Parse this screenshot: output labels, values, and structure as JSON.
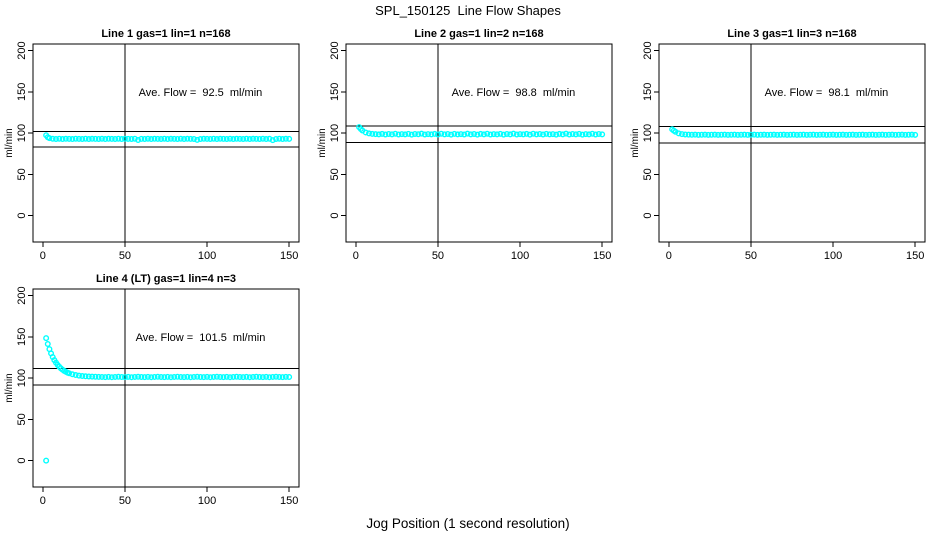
{
  "page": {
    "main_title": "SPL_150125  Line Flow Shapes",
    "x_axis_label": "Jog Position (1 second resolution)",
    "background_color": "#FFFFFF",
    "point_color": "#00FFFF",
    "axis_color": "#000000"
  },
  "chart_data": [
    {
      "type": "scatter",
      "title": "Line 1 gas=1 lin=1 n=168",
      "annotation": "Ave. Flow =  92.5  ml/min",
      "ave_flow_ml_min": 92.5,
      "n": 168,
      "ylabel": "ml/min",
      "x_ticks": [
        0,
        50,
        100,
        150
      ],
      "y_ticks": [
        0,
        50,
        100,
        150,
        200
      ],
      "xlim": [
        -6,
        156
      ],
      "ylim": [
        -32,
        208
      ],
      "ref_lines_y": [
        101.8,
        83.3
      ],
      "ref_line_x": 50,
      "annotation_pos": {
        "x": 96,
        "y": 150
      },
      "grid": false,
      "x": [
        2,
        3,
        4,
        6,
        8,
        10,
        12,
        14,
        16,
        18,
        20,
        22,
        24,
        26,
        28,
        30,
        32,
        34,
        36,
        38,
        40,
        42,
        44,
        46,
        48,
        50,
        52,
        54,
        56,
        58,
        60,
        62,
        64,
        66,
        68,
        70,
        72,
        74,
        76,
        78,
        80,
        82,
        84,
        86,
        88,
        90,
        92,
        94,
        96,
        98,
        100,
        102,
        104,
        106,
        108,
        110,
        112,
        114,
        116,
        118,
        120,
        122,
        124,
        126,
        128,
        130,
        132,
        134,
        136,
        138,
        140,
        142,
        144,
        146,
        148,
        150
      ],
      "y": [
        97.4,
        95.0,
        93.9,
        93.2,
        92.9,
        93.2,
        92.8,
        93.1,
        93.0,
        92.8,
        93.2,
        93.0,
        92.9,
        93.2,
        92.8,
        93.1,
        93.0,
        92.9,
        93.2,
        92.8,
        93.1,
        93.0,
        92.9,
        93.2,
        92.8,
        93.1,
        93.0,
        92.9,
        93.2,
        91.6,
        93.0,
        92.9,
        93.2,
        92.8,
        93.1,
        93.0,
        92.9,
        93.2,
        92.8,
        93.1,
        93.0,
        92.9,
        93.2,
        92.8,
        93.1,
        93.0,
        92.9,
        91.8,
        92.8,
        93.1,
        93.0,
        92.9,
        93.2,
        92.8,
        93.1,
        93.0,
        92.9,
        93.2,
        92.8,
        93.1,
        93.0,
        92.9,
        93.2,
        92.8,
        93.1,
        93.0,
        92.9,
        93.2,
        92.8,
        93.1,
        91.5,
        92.9,
        93.2,
        92.8,
        93.1,
        93.0
      ]
    },
    {
      "type": "scatter",
      "title": "Line 2 gas=1 lin=2 n=168",
      "annotation": "Ave. Flow =  98.8  ml/min",
      "ave_flow_ml_min": 98.8,
      "n": 168,
      "ylabel": "ml/min",
      "x_ticks": [
        0,
        50,
        100,
        150
      ],
      "y_ticks": [
        0,
        50,
        100,
        150,
        200
      ],
      "xlim": [
        -6,
        156
      ],
      "ylim": [
        -32,
        208
      ],
      "ref_lines_y": [
        108.7,
        88.9
      ],
      "ref_line_x": 50,
      "annotation_pos": {
        "x": 96,
        "y": 150
      },
      "grid": false,
      "x": [
        2,
        3,
        4,
        6,
        8,
        10,
        12,
        14,
        16,
        18,
        20,
        22,
        24,
        26,
        28,
        30,
        32,
        34,
        36,
        38,
        40,
        42,
        44,
        46,
        48,
        50,
        52,
        54,
        56,
        58,
        60,
        62,
        64,
        66,
        68,
        70,
        72,
        74,
        76,
        78,
        80,
        82,
        84,
        86,
        88,
        90,
        92,
        94,
        96,
        98,
        100,
        102,
        104,
        106,
        108,
        110,
        112,
        114,
        116,
        118,
        120,
        122,
        124,
        126,
        128,
        130,
        132,
        134,
        136,
        138,
        140,
        142,
        144,
        146,
        148,
        150
      ],
      "y": [
        107.2,
        105.0,
        103.1,
        100.8,
        99.6,
        99.0,
        98.7,
        98.4,
        99.0,
        98.3,
        98.9,
        98.5,
        99.2,
        98.3,
        98.8,
        98.4,
        99.1,
        98.2,
        98.9,
        98.6,
        99.3,
        98.3,
        98.8,
        98.4,
        99.0,
        98.3,
        99.2,
        98.5,
        98.9,
        98.2,
        99.1,
        98.4,
        98.8,
        98.3,
        99.3,
        98.5,
        98.9,
        98.2,
        99.0,
        98.4,
        99.2,
        98.3,
        98.8,
        98.5,
        99.1,
        98.2,
        98.9,
        98.4,
        99.3,
        98.3,
        98.8,
        98.5,
        99.0,
        98.2,
        99.2,
        98.4,
        98.9,
        98.3,
        99.1,
        98.5,
        98.8,
        98.2,
        99.0,
        98.4,
        99.3,
        98.3,
        98.9,
        98.5,
        99.1,
        98.2,
        98.8,
        98.4,
        99.2,
        98.3,
        98.9,
        98.5
      ]
    },
    {
      "type": "scatter",
      "title": "Line 3 gas=1 lin=3 n=168",
      "annotation": "Ave. Flow =  98.1  ml/min",
      "ave_flow_ml_min": 98.1,
      "n": 168,
      "ylabel": "ml/min",
      "x_ticks": [
        0,
        50,
        100,
        150
      ],
      "y_ticks": [
        0,
        50,
        100,
        150,
        200
      ],
      "xlim": [
        -6,
        156
      ],
      "ylim": [
        -32,
        208
      ],
      "ref_lines_y": [
        107.9,
        88.3
      ],
      "ref_line_x": 50,
      "annotation_pos": {
        "x": 96,
        "y": 150
      },
      "grid": false,
      "x": [
        2,
        3,
        4,
        6,
        8,
        10,
        12,
        14,
        16,
        18,
        20,
        22,
        24,
        26,
        28,
        30,
        32,
        34,
        36,
        38,
        40,
        42,
        44,
        46,
        48,
        50,
        52,
        54,
        56,
        58,
        60,
        62,
        64,
        66,
        68,
        70,
        72,
        74,
        76,
        78,
        80,
        82,
        84,
        86,
        88,
        90,
        92,
        94,
        96,
        98,
        100,
        102,
        104,
        106,
        108,
        110,
        112,
        114,
        116,
        118,
        120,
        122,
        124,
        126,
        128,
        130,
        132,
        134,
        136,
        138,
        140,
        142,
        144,
        146,
        148,
        150
      ],
      "y": [
        104.6,
        103.0,
        101.6,
        99.7,
        98.8,
        98.3,
        98.1,
        98.0,
        98.1,
        97.9,
        98.0,
        98.1,
        97.9,
        98.0,
        98.1,
        97.9,
        98.0,
        98.1,
        97.9,
        98.0,
        98.1,
        97.9,
        98.0,
        98.1,
        97.9,
        98.0,
        98.1,
        97.9,
        98.0,
        98.1,
        97.9,
        98.0,
        98.1,
        97.9,
        98.0,
        98.1,
        97.9,
        98.0,
        98.1,
        97.9,
        98.0,
        98.1,
        97.9,
        98.0,
        98.1,
        97.9,
        98.0,
        98.1,
        97.9,
        98.0,
        98.1,
        97.9,
        98.0,
        98.1,
        97.9,
        98.0,
        98.1,
        97.9,
        98.0,
        98.1,
        97.9,
        98.0,
        98.1,
        97.9,
        98.0,
        98.1,
        97.9,
        98.0,
        98.1,
        97.9,
        98.0,
        98.1,
        97.9,
        98.0,
        98.1,
        97.9
      ]
    },
    {
      "type": "scatter",
      "title": "Line 4 (LT) gas=1 lin=4 n=3",
      "annotation": "Ave. Flow =  101.5  ml/min",
      "ave_flow_ml_min": 101.5,
      "n": 3,
      "ylabel": "ml/min",
      "x_ticks": [
        0,
        50,
        100,
        150
      ],
      "y_ticks": [
        0,
        50,
        100,
        150,
        200
      ],
      "xlim": [
        -6,
        156
      ],
      "ylim": [
        -32,
        208
      ],
      "ref_lines_y": [
        111.7,
        91.4
      ],
      "ref_line_x": 50,
      "annotation_pos": {
        "x": 96,
        "y": 150
      },
      "grid": false,
      "x": [
        2,
        2,
        3,
        4,
        5,
        6,
        7,
        8,
        9,
        10,
        11,
        12,
        13,
        14,
        15,
        16,
        18,
        20,
        22,
        24,
        26,
        28,
        30,
        32,
        34,
        36,
        38,
        40,
        42,
        44,
        46,
        48,
        50,
        52,
        54,
        56,
        58,
        60,
        62,
        64,
        66,
        68,
        70,
        72,
        74,
        76,
        78,
        80,
        82,
        84,
        86,
        88,
        90,
        92,
        94,
        96,
        98,
        100,
        102,
        104,
        106,
        108,
        110,
        112,
        114,
        116,
        118,
        120,
        122,
        124,
        126,
        128,
        130,
        132,
        134,
        136,
        138,
        140,
        142,
        144,
        146,
        148,
        150
      ],
      "y": [
        0,
        148.5,
        141.3,
        135.1,
        129.9,
        125.5,
        121.8,
        118.7,
        116.0,
        113.7,
        111.8,
        110.2,
        108.8,
        107.7,
        106.7,
        105.9,
        104.6,
        103.7,
        103.0,
        102.5,
        102.2,
        101.9,
        101.8,
        101.6,
        101.5,
        101.4,
        101.2,
        101.5,
        101.1,
        101.4,
        101.6,
        101.3,
        101.2,
        101.5,
        101.1,
        101.4,
        101.6,
        101.3,
        101.2,
        101.5,
        101.1,
        101.4,
        101.6,
        101.3,
        101.2,
        101.5,
        101.1,
        101.4,
        101.6,
        101.3,
        101.2,
        101.5,
        101.1,
        101.4,
        101.6,
        101.3,
        101.2,
        101.5,
        101.1,
        101.4,
        101.6,
        101.3,
        101.2,
        101.5,
        101.1,
        101.4,
        101.6,
        101.3,
        101.2,
        101.5,
        101.1,
        101.4,
        101.6,
        101.3,
        101.2,
        101.5,
        101.1,
        101.4,
        101.6,
        101.3,
        101.2,
        101.5,
        101.3
      ]
    }
  ]
}
